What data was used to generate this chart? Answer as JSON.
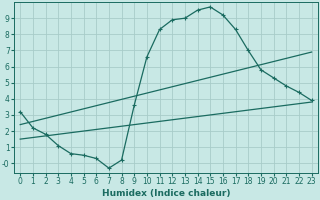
{
  "xlabel": "Humidex (Indice chaleur)",
  "bg_color": "#c8e8e5",
  "grid_color": "#a8ccc9",
  "line_color": "#1a6b60",
  "line1_x": [
    0,
    1,
    2,
    3,
    4,
    5,
    6,
    7,
    8,
    9,
    10,
    11,
    12,
    13,
    14,
    15,
    16,
    17,
    18,
    19,
    20,
    21,
    22,
    23
  ],
  "line1_y": [
    3.2,
    2.2,
    1.8,
    1.1,
    0.6,
    0.5,
    0.3,
    -0.3,
    0.2,
    3.6,
    6.6,
    8.3,
    8.9,
    9.0,
    9.5,
    9.7,
    9.2,
    8.3,
    7.0,
    5.8,
    5.3,
    4.8,
    4.4,
    3.9
  ],
  "line2_x": [
    0,
    23
  ],
  "line2_y": [
    1.5,
    3.8
  ],
  "line3_x": [
    0,
    23
  ],
  "line3_y": [
    2.4,
    6.9
  ],
  "ylim": [
    -0.6,
    10.0
  ],
  "xlim": [
    -0.5,
    23.5
  ],
  "yticks": [
    0,
    1,
    2,
    3,
    4,
    5,
    6,
    7,
    8,
    9
  ],
  "ytick_labels": [
    "-0",
    "1",
    "2",
    "3",
    "4",
    "5",
    "6",
    "7",
    "8",
    "9"
  ],
  "xticks": [
    0,
    1,
    2,
    3,
    4,
    5,
    6,
    7,
    8,
    9,
    10,
    11,
    12,
    13,
    14,
    15,
    16,
    17,
    18,
    19,
    20,
    21,
    22,
    23
  ],
  "tick_fontsize": 5.5,
  "xlabel_fontsize": 6.5,
  "linewidth": 0.9,
  "marker_size": 3.5
}
